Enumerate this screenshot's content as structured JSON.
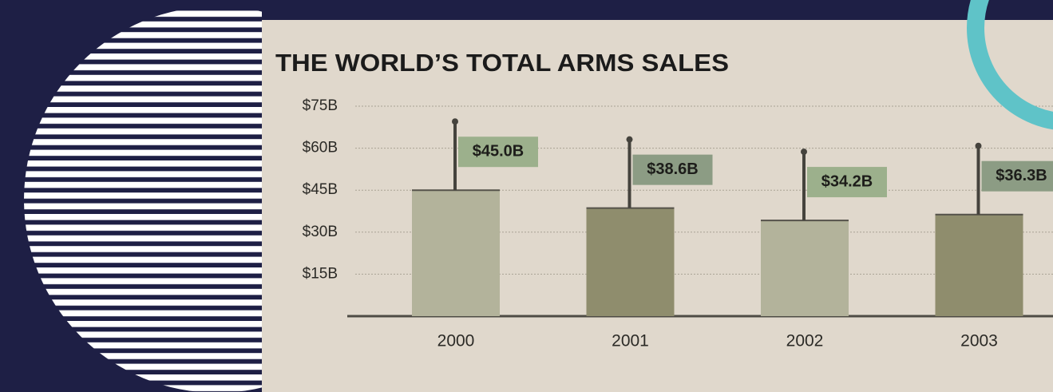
{
  "chart_data": {
    "type": "bar",
    "title": "THE WORLD’S TOTAL ARMS SALES",
    "categories": [
      "2000",
      "2001",
      "2002",
      "2003"
    ],
    "values": [
      45.0,
      38.6,
      34.2,
      36.3
    ],
    "value_labels": [
      "$45.0B",
      "$38.6B",
      "$34.2B",
      "$36.3B"
    ],
    "colors": [
      "#b3b39b",
      "#8f8d6d",
      "#b3b39b",
      "#8f8d6d"
    ],
    "ylim": [
      0,
      75
    ],
    "yticks": [
      {
        "value": 15,
        "label": "$15B"
      },
      {
        "value": 30,
        "label": "$30B"
      },
      {
        "value": 45,
        "label": "$45B"
      },
      {
        "value": 60,
        "label": "$60B"
      },
      {
        "value": 75,
        "label": "$75B"
      }
    ],
    "grid": true
  }
}
